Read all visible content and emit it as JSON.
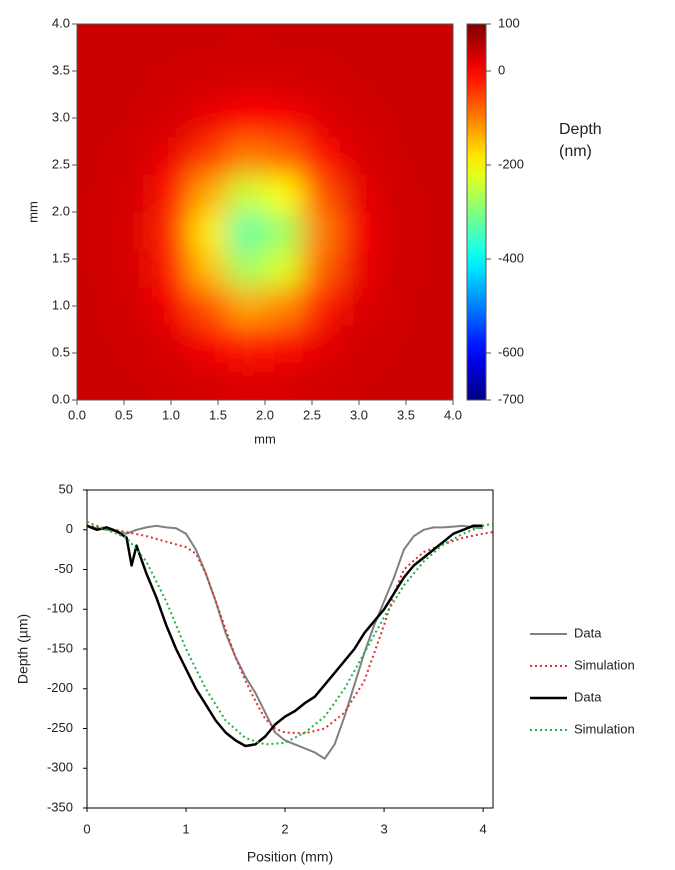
{
  "chart_data": [
    {
      "type": "heatmap",
      "x_label": "mm",
      "y_label": "mm",
      "x": [
        0.2,
        0.6,
        1.0,
        1.4,
        1.8,
        2.2,
        2.6,
        3.0,
        3.4,
        3.8
      ],
      "y": [
        0.2,
        0.6,
        1.0,
        1.4,
        1.8,
        2.2,
        2.6,
        3.0,
        3.4,
        3.8
      ],
      "z": [
        [
          40,
          40,
          37,
          32,
          27,
          29,
          35,
          39,
          40,
          40
        ],
        [
          40,
          38,
          29,
          4,
          -20,
          -11,
          18,
          35,
          39,
          40
        ],
        [
          40,
          34,
          7,
          -65,
          -131,
          -106,
          -24,
          25,
          38,
          40
        ],
        [
          39,
          30,
          -21,
          -152,
          -273,
          -226,
          -77,
          13,
          37,
          40
        ],
        [
          39,
          28,
          -32,
          -188,
          -332,
          -277,
          -100,
          8,
          36,
          40
        ],
        [
          39,
          31,
          -15,
          -133,
          -242,
          -200,
          -66,
          16,
          37,
          40
        ],
        [
          40,
          36,
          13,
          -44,
          -97,
          -77,
          -11,
          28,
          39,
          40
        ],
        [
          40,
          39,
          32,
          14,
          -3,
          4,
          24,
          36,
          40,
          40
        ],
        [
          40,
          40,
          38,
          35,
          31,
          33,
          37,
          39,
          40,
          40
        ],
        [
          40,
          40,
          40,
          40,
          39,
          40,
          40,
          40,
          40,
          40
        ]
      ],
      "xlim": [
        0,
        4
      ],
      "ylim": [
        0,
        4
      ],
      "xticks": [
        {
          "value": 0,
          "label": "0.0"
        },
        0.5,
        {
          "value": 1,
          "label": "1.0"
        },
        1.5,
        {
          "value": 2,
          "label": "2.0"
        },
        2.5,
        {
          "value": 3,
          "label": "3.0"
        },
        3.5,
        {
          "value": 4,
          "label": "4.0"
        }
      ],
      "yticks": [
        {
          "value": 0,
          "label": "0.0"
        },
        0.5,
        {
          "value": 1,
          "label": "1.0"
        },
        1.5,
        {
          "value": 2,
          "label": "2.0"
        },
        2.5,
        {
          "value": 3,
          "label": "3.0"
        },
        3.5,
        {
          "value": 4,
          "label": "4.0"
        }
      ],
      "colorscale": "jet",
      "zlim": [
        -700,
        100
      ],
      "zticks": [
        100,
        0,
        -200,
        -400,
        -600,
        -700
      ],
      "colorbar_label": [
        "Depth",
        "(nm)"
      ]
    },
    {
      "type": "line",
      "x_label": "Position (mm)",
      "y_label": "Depth (µm)",
      "xlim": [
        0,
        4.1
      ],
      "ylim": [
        -350,
        50
      ],
      "xticks": [
        0,
        1,
        2,
        3,
        4
      ],
      "yticks": [
        50,
        0,
        -50,
        -100,
        -150,
        -200,
        -250,
        -300,
        -350
      ],
      "legend": "right",
      "series": [
        {
          "name": "Data",
          "color": "#808080",
          "line_style": "solid",
          "width": 2,
          "x": [
            0,
            0.1,
            0.2,
            0.3,
            0.4,
            0.5,
            0.6,
            0.7,
            0.8,
            0.9,
            1.0,
            1.1,
            1.2,
            1.3,
            1.4,
            1.5,
            1.6,
            1.7,
            1.8,
            1.9,
            2.0,
            2.1,
            2.2,
            2.3,
            2.4,
            2.5,
            2.6,
            2.7,
            2.8,
            2.9,
            3.0,
            3.1,
            3.2,
            3.3,
            3.4,
            3.5,
            3.6,
            3.7,
            3.8,
            3.9,
            4.0
          ],
          "values": [
            5,
            2,
            0,
            -2,
            -5,
            0,
            3,
            5,
            3,
            2,
            -5,
            -25,
            -55,
            -90,
            -130,
            -160,
            -185,
            -205,
            -230,
            -255,
            -265,
            -270,
            -275,
            -280,
            -288,
            -270,
            -235,
            -195,
            -155,
            -120,
            -90,
            -60,
            -25,
            -8,
            0,
            3,
            3,
            4,
            5,
            3,
            2
          ]
        },
        {
          "name": "Simulation",
          "color": "#e03030",
          "line_style": "dotted",
          "width": 2,
          "x": [
            0,
            0.2,
            0.4,
            0.6,
            0.8,
            1.0,
            1.1,
            1.2,
            1.3,
            1.4,
            1.5,
            1.6,
            1.7,
            1.8,
            1.9,
            2.0,
            2.2,
            2.4,
            2.6,
            2.8,
            3.0,
            3.1,
            3.2,
            3.4,
            3.6,
            3.8,
            4.0,
            4.1
          ],
          "values": [
            5,
            2,
            -3,
            -8,
            -15,
            -22,
            -30,
            -55,
            -90,
            -125,
            -160,
            -190,
            -215,
            -238,
            -250,
            -255,
            -256,
            -250,
            -230,
            -190,
            -120,
            -80,
            -50,
            -28,
            -18,
            -10,
            -5,
            -3
          ]
        },
        {
          "name": "Data",
          "color": "#000000",
          "line_style": "solid",
          "width": 2.5,
          "x": [
            0,
            0.1,
            0.2,
            0.3,
            0.4,
            0.45,
            0.5,
            0.6,
            0.7,
            0.8,
            0.9,
            1.0,
            1.1,
            1.2,
            1.3,
            1.4,
            1.5,
            1.6,
            1.7,
            1.8,
            1.9,
            2.0,
            2.1,
            2.2,
            2.3,
            2.4,
            2.5,
            2.6,
            2.7,
            2.8,
            2.9,
            3.0,
            3.1,
            3.2,
            3.3,
            3.4,
            3.5,
            3.6,
            3.7,
            3.8,
            3.9,
            4.0
          ],
          "values": [
            5,
            0,
            3,
            -2,
            -10,
            -45,
            -20,
            -55,
            -85,
            -120,
            -150,
            -175,
            -200,
            -220,
            -240,
            -255,
            -265,
            -272,
            -270,
            -260,
            -245,
            -235,
            -228,
            -218,
            -210,
            -195,
            -180,
            -165,
            -150,
            -130,
            -115,
            -100,
            -80,
            -60,
            -45,
            -35,
            -25,
            -15,
            -5,
            0,
            5,
            5
          ]
        },
        {
          "name": "Simulation",
          "color": "#20b040",
          "line_style": "dotted",
          "width": 2,
          "x": [
            0,
            0.2,
            0.4,
            0.6,
            0.8,
            1.0,
            1.2,
            1.4,
            1.6,
            1.8,
            2.0,
            2.2,
            2.4,
            2.6,
            2.8,
            3.0,
            3.2,
            3.4,
            3.6,
            3.8,
            4.0,
            4.1
          ],
          "values": [
            10,
            0,
            -10,
            -40,
            -90,
            -150,
            -200,
            -240,
            -262,
            -270,
            -268,
            -255,
            -235,
            -200,
            -155,
            -110,
            -70,
            -40,
            -18,
            -5,
            5,
            8
          ]
        }
      ]
    }
  ]
}
